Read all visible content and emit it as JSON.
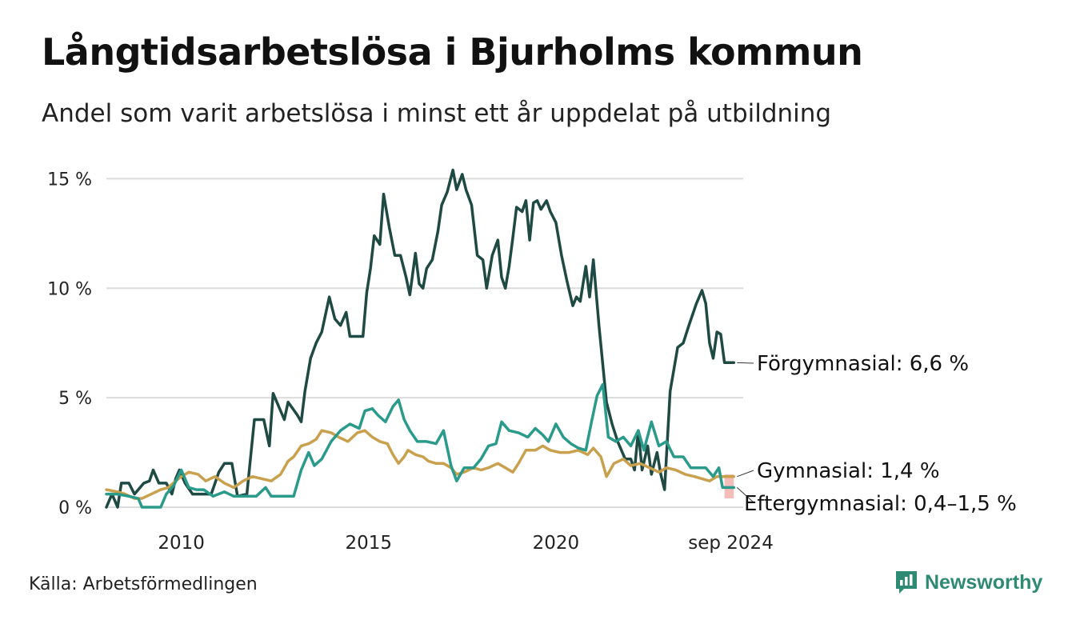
{
  "header": {
    "title": "Långtidsarbetslösa i Bjurholms kommun",
    "subtitle": "Andel som varit arbetslösa i minst ett år uppdelat på utbildning"
  },
  "footer": {
    "source": "Källa: Arbetsförmedlingen",
    "brand": "Newsworthy",
    "brand_icon": "newsworthy-logo-icon",
    "brand_color": "#2f8a74"
  },
  "chart_data": {
    "type": "line",
    "title": "Långtidsarbetslösa i Bjurholms kommun",
    "subtitle": "Andel som varit arbetslösa i minst ett år uppdelat på utbildning",
    "xlabel": "",
    "ylabel": "",
    "x_ticks": [
      {
        "x": 2010.0,
        "label": "2010"
      },
      {
        "x": 2015.0,
        "label": "2015"
      },
      {
        "x": 2020.0,
        "label": "2020"
      },
      {
        "x": 2024.67,
        "label": "sep 2024"
      }
    ],
    "y_ticks": [
      {
        "y": 0,
        "label": "0 %"
      },
      {
        "y": 5,
        "label": "5 %"
      },
      {
        "y": 10,
        "label": "10 %"
      },
      {
        "y": 15,
        "label": "15 %"
      }
    ],
    "xlim": [
      2008.0,
      2025.0
    ],
    "ylim": [
      0,
      15.6
    ],
    "grid": true,
    "legend": "direct labels at line ends (right)",
    "series": [
      {
        "name": "Förgymnasial",
        "end_label": "Förgymnasial: 6,6 %",
        "color": "#1f4a43",
        "points": [
          [
            2008.0,
            0.0
          ],
          [
            2008.15,
            0.6
          ],
          [
            2008.3,
            0.0
          ],
          [
            2008.4,
            1.1
          ],
          [
            2008.6,
            1.1
          ],
          [
            2008.75,
            0.6
          ],
          [
            2009.0,
            1.1
          ],
          [
            2009.15,
            1.2
          ],
          [
            2009.25,
            1.7
          ],
          [
            2009.4,
            1.1
          ],
          [
            2009.6,
            1.1
          ],
          [
            2009.75,
            0.6
          ],
          [
            2009.85,
            1.3
          ],
          [
            2009.95,
            1.7
          ],
          [
            2010.1,
            1.1
          ],
          [
            2010.3,
            0.6
          ],
          [
            2010.6,
            0.6
          ],
          [
            2010.8,
            0.6
          ],
          [
            2011.0,
            1.6
          ],
          [
            2011.15,
            2.0
          ],
          [
            2011.35,
            2.0
          ],
          [
            2011.5,
            0.5
          ],
          [
            2011.75,
            0.6
          ],
          [
            2011.85,
            2.3
          ],
          [
            2011.95,
            4.0
          ],
          [
            2012.2,
            4.0
          ],
          [
            2012.35,
            2.8
          ],
          [
            2012.45,
            5.2
          ],
          [
            2012.6,
            4.6
          ],
          [
            2012.75,
            4.0
          ],
          [
            2012.85,
            4.8
          ],
          [
            2013.1,
            4.2
          ],
          [
            2013.2,
            3.9
          ],
          [
            2013.3,
            5.3
          ],
          [
            2013.45,
            6.8
          ],
          [
            2013.6,
            7.5
          ],
          [
            2013.75,
            8.0
          ],
          [
            2013.95,
            9.6
          ],
          [
            2014.1,
            8.6
          ],
          [
            2014.25,
            8.3
          ],
          [
            2014.4,
            8.9
          ],
          [
            2014.5,
            7.8
          ],
          [
            2014.65,
            7.8
          ],
          [
            2014.85,
            7.8
          ],
          [
            2014.95,
            9.8
          ],
          [
            2015.05,
            10.9
          ],
          [
            2015.15,
            12.4
          ],
          [
            2015.3,
            12.0
          ],
          [
            2015.4,
            14.3
          ],
          [
            2015.55,
            12.8
          ],
          [
            2015.7,
            11.5
          ],
          [
            2015.85,
            11.5
          ],
          [
            2016.0,
            10.5
          ],
          [
            2016.1,
            9.7
          ],
          [
            2016.25,
            11.6
          ],
          [
            2016.35,
            10.2
          ],
          [
            2016.45,
            10.0
          ],
          [
            2016.55,
            10.9
          ],
          [
            2016.7,
            11.3
          ],
          [
            2016.85,
            12.6
          ],
          [
            2016.95,
            13.8
          ],
          [
            2017.1,
            14.4
          ],
          [
            2017.25,
            15.4
          ],
          [
            2017.35,
            14.5
          ],
          [
            2017.5,
            15.2
          ],
          [
            2017.6,
            14.5
          ],
          [
            2017.75,
            13.8
          ],
          [
            2017.9,
            11.5
          ],
          [
            2018.05,
            11.3
          ],
          [
            2018.15,
            10.0
          ],
          [
            2018.3,
            11.5
          ],
          [
            2018.45,
            12.2
          ],
          [
            2018.55,
            10.5
          ],
          [
            2018.65,
            10.0
          ],
          [
            2018.75,
            11.0
          ],
          [
            2018.85,
            12.3
          ],
          [
            2018.95,
            13.7
          ],
          [
            2019.1,
            13.5
          ],
          [
            2019.2,
            14.0
          ],
          [
            2019.3,
            12.2
          ],
          [
            2019.4,
            13.9
          ],
          [
            2019.5,
            14.0
          ],
          [
            2019.6,
            13.6
          ],
          [
            2019.75,
            14.0
          ],
          [
            2019.85,
            13.5
          ],
          [
            2020.0,
            13.0
          ],
          [
            2020.15,
            11.5
          ],
          [
            2020.3,
            10.3
          ],
          [
            2020.45,
            9.2
          ],
          [
            2020.55,
            9.6
          ],
          [
            2020.65,
            9.4
          ],
          [
            2020.8,
            11.0
          ],
          [
            2020.9,
            9.6
          ],
          [
            2021.0,
            11.3
          ],
          [
            2021.15,
            8.3
          ],
          [
            2021.35,
            4.8
          ],
          [
            2021.5,
            3.8
          ],
          [
            2021.65,
            3.0
          ],
          [
            2021.85,
            2.2
          ],
          [
            2022.0,
            2.2
          ],
          [
            2022.1,
            1.7
          ],
          [
            2022.2,
            3.5
          ],
          [
            2022.3,
            1.7
          ],
          [
            2022.45,
            2.8
          ],
          [
            2022.55,
            1.5
          ],
          [
            2022.7,
            2.5
          ],
          [
            2022.8,
            1.5
          ],
          [
            2022.9,
            0.8
          ],
          [
            2023.05,
            5.3
          ],
          [
            2023.25,
            7.3
          ],
          [
            2023.4,
            7.5
          ],
          [
            2023.55,
            8.3
          ],
          [
            2023.75,
            9.3
          ],
          [
            2023.9,
            9.9
          ],
          [
            2024.0,
            9.3
          ],
          [
            2024.1,
            7.5
          ],
          [
            2024.2,
            6.8
          ],
          [
            2024.3,
            8.0
          ],
          [
            2024.4,
            7.9
          ],
          [
            2024.5,
            6.6
          ],
          [
            2024.65,
            6.6
          ],
          [
            2024.75,
            6.6
          ]
        ]
      },
      {
        "name": "Gymnasial",
        "end_label": "Gymnasial: 1,4 %",
        "color": "#c9a04d",
        "points": [
          [
            2008.0,
            0.8
          ],
          [
            2008.3,
            0.7
          ],
          [
            2008.5,
            0.6
          ],
          [
            2008.75,
            0.4
          ],
          [
            2008.95,
            0.4
          ],
          [
            2009.2,
            0.6
          ],
          [
            2009.45,
            0.8
          ],
          [
            2009.65,
            0.9
          ],
          [
            2009.85,
            1.2
          ],
          [
            2010.0,
            1.4
          ],
          [
            2010.2,
            1.6
          ],
          [
            2010.45,
            1.5
          ],
          [
            2010.65,
            1.2
          ],
          [
            2010.9,
            1.4
          ],
          [
            2011.15,
            1.1
          ],
          [
            2011.4,
            0.9
          ],
          [
            2011.65,
            1.2
          ],
          [
            2011.9,
            1.4
          ],
          [
            2012.15,
            1.3
          ],
          [
            2012.4,
            1.2
          ],
          [
            2012.65,
            1.5
          ],
          [
            2012.85,
            2.1
          ],
          [
            2013.0,
            2.3
          ],
          [
            2013.2,
            2.8
          ],
          [
            2013.4,
            2.9
          ],
          [
            2013.6,
            3.1
          ],
          [
            2013.75,
            3.5
          ],
          [
            2014.0,
            3.4
          ],
          [
            2014.2,
            3.2
          ],
          [
            2014.45,
            3.0
          ],
          [
            2014.7,
            3.4
          ],
          [
            2014.9,
            3.5
          ],
          [
            2015.1,
            3.2
          ],
          [
            2015.3,
            3.0
          ],
          [
            2015.5,
            2.9
          ],
          [
            2015.65,
            2.4
          ],
          [
            2015.8,
            2.0
          ],
          [
            2015.95,
            2.3
          ],
          [
            2016.05,
            2.6
          ],
          [
            2016.25,
            2.4
          ],
          [
            2016.45,
            2.3
          ],
          [
            2016.6,
            2.1
          ],
          [
            2016.8,
            2.0
          ],
          [
            2017.0,
            2.0
          ],
          [
            2017.2,
            1.8
          ],
          [
            2017.35,
            1.5
          ],
          [
            2017.55,
            1.6
          ],
          [
            2017.8,
            1.8
          ],
          [
            2018.0,
            1.7
          ],
          [
            2018.2,
            1.8
          ],
          [
            2018.45,
            2.0
          ],
          [
            2018.65,
            1.8
          ],
          [
            2018.85,
            1.6
          ],
          [
            2019.0,
            2.0
          ],
          [
            2019.2,
            2.6
          ],
          [
            2019.45,
            2.6
          ],
          [
            2019.65,
            2.8
          ],
          [
            2019.85,
            2.6
          ],
          [
            2020.1,
            2.5
          ],
          [
            2020.35,
            2.5
          ],
          [
            2020.6,
            2.6
          ],
          [
            2020.85,
            2.4
          ],
          [
            2021.0,
            2.7
          ],
          [
            2021.2,
            2.3
          ],
          [
            2021.35,
            1.4
          ],
          [
            2021.55,
            2.0
          ],
          [
            2021.8,
            2.2
          ],
          [
            2022.0,
            1.9
          ],
          [
            2022.25,
            2.0
          ],
          [
            2022.5,
            1.8
          ],
          [
            2022.75,
            1.6
          ],
          [
            2022.95,
            1.8
          ],
          [
            2023.2,
            1.7
          ],
          [
            2023.45,
            1.5
          ],
          [
            2023.7,
            1.4
          ],
          [
            2023.9,
            1.3
          ],
          [
            2024.1,
            1.2
          ],
          [
            2024.3,
            1.4
          ],
          [
            2024.5,
            1.4
          ],
          [
            2024.75,
            1.4
          ]
        ]
      },
      {
        "name": "Eftergymnasial",
        "end_label": "Eftergymnasial: 0,4–1,5 %",
        "color": "#2a9a8a",
        "range_color": "#f4b6b2",
        "range_band": {
          "x_start": 2024.5,
          "x_end": 2024.75,
          "low": 0.4,
          "high": 1.5
        },
        "points": [
          [
            2008.0,
            0.6
          ],
          [
            2008.3,
            0.6
          ],
          [
            2008.6,
            0.5
          ],
          [
            2008.85,
            0.4
          ],
          [
            2008.95,
            0.0
          ],
          [
            2009.2,
            0.0
          ],
          [
            2009.45,
            0.0
          ],
          [
            2009.6,
            0.6
          ],
          [
            2009.8,
            1.0
          ],
          [
            2010.0,
            1.7
          ],
          [
            2010.2,
            0.9
          ],
          [
            2010.4,
            0.8
          ],
          [
            2010.6,
            0.8
          ],
          [
            2010.85,
            0.5
          ],
          [
            2011.15,
            0.7
          ],
          [
            2011.4,
            0.5
          ],
          [
            2011.7,
            0.5
          ],
          [
            2012.0,
            0.5
          ],
          [
            2012.25,
            0.9
          ],
          [
            2012.4,
            0.5
          ],
          [
            2012.7,
            0.5
          ],
          [
            2013.0,
            0.5
          ],
          [
            2013.2,
            1.7
          ],
          [
            2013.4,
            2.5
          ],
          [
            2013.55,
            1.9
          ],
          [
            2013.75,
            2.2
          ],
          [
            2014.0,
            3.0
          ],
          [
            2014.25,
            3.5
          ],
          [
            2014.5,
            3.8
          ],
          [
            2014.75,
            3.6
          ],
          [
            2014.9,
            4.4
          ],
          [
            2015.1,
            4.5
          ],
          [
            2015.25,
            4.2
          ],
          [
            2015.45,
            3.9
          ],
          [
            2015.65,
            4.6
          ],
          [
            2015.8,
            4.9
          ],
          [
            2015.95,
            4.0
          ],
          [
            2016.1,
            3.5
          ],
          [
            2016.3,
            3.0
          ],
          [
            2016.55,
            3.0
          ],
          [
            2016.8,
            2.9
          ],
          [
            2017.0,
            3.5
          ],
          [
            2017.2,
            1.9
          ],
          [
            2017.35,
            1.2
          ],
          [
            2017.55,
            1.8
          ],
          [
            2017.8,
            1.8
          ],
          [
            2018.0,
            2.2
          ],
          [
            2018.2,
            2.8
          ],
          [
            2018.4,
            2.9
          ],
          [
            2018.55,
            3.9
          ],
          [
            2018.75,
            3.5
          ],
          [
            2019.0,
            3.4
          ],
          [
            2019.25,
            3.2
          ],
          [
            2019.45,
            3.6
          ],
          [
            2019.65,
            3.3
          ],
          [
            2019.8,
            3.0
          ],
          [
            2020.0,
            3.8
          ],
          [
            2020.2,
            3.2
          ],
          [
            2020.4,
            2.9
          ],
          [
            2020.6,
            2.7
          ],
          [
            2020.8,
            2.6
          ],
          [
            2020.95,
            3.9
          ],
          [
            2021.1,
            5.1
          ],
          [
            2021.25,
            5.6
          ],
          [
            2021.4,
            3.2
          ],
          [
            2021.6,
            3.0
          ],
          [
            2021.8,
            3.2
          ],
          [
            2022.0,
            2.8
          ],
          [
            2022.2,
            3.5
          ],
          [
            2022.35,
            2.6
          ],
          [
            2022.55,
            3.9
          ],
          [
            2022.75,
            2.8
          ],
          [
            2022.95,
            3.0
          ],
          [
            2023.15,
            2.3
          ],
          [
            2023.4,
            2.3
          ],
          [
            2023.6,
            1.8
          ],
          [
            2023.8,
            1.8
          ],
          [
            2024.0,
            1.8
          ],
          [
            2024.2,
            1.4
          ],
          [
            2024.35,
            1.8
          ],
          [
            2024.45,
            0.9
          ],
          [
            2024.6,
            0.9
          ],
          [
            2024.75,
            0.9
          ]
        ]
      }
    ]
  }
}
